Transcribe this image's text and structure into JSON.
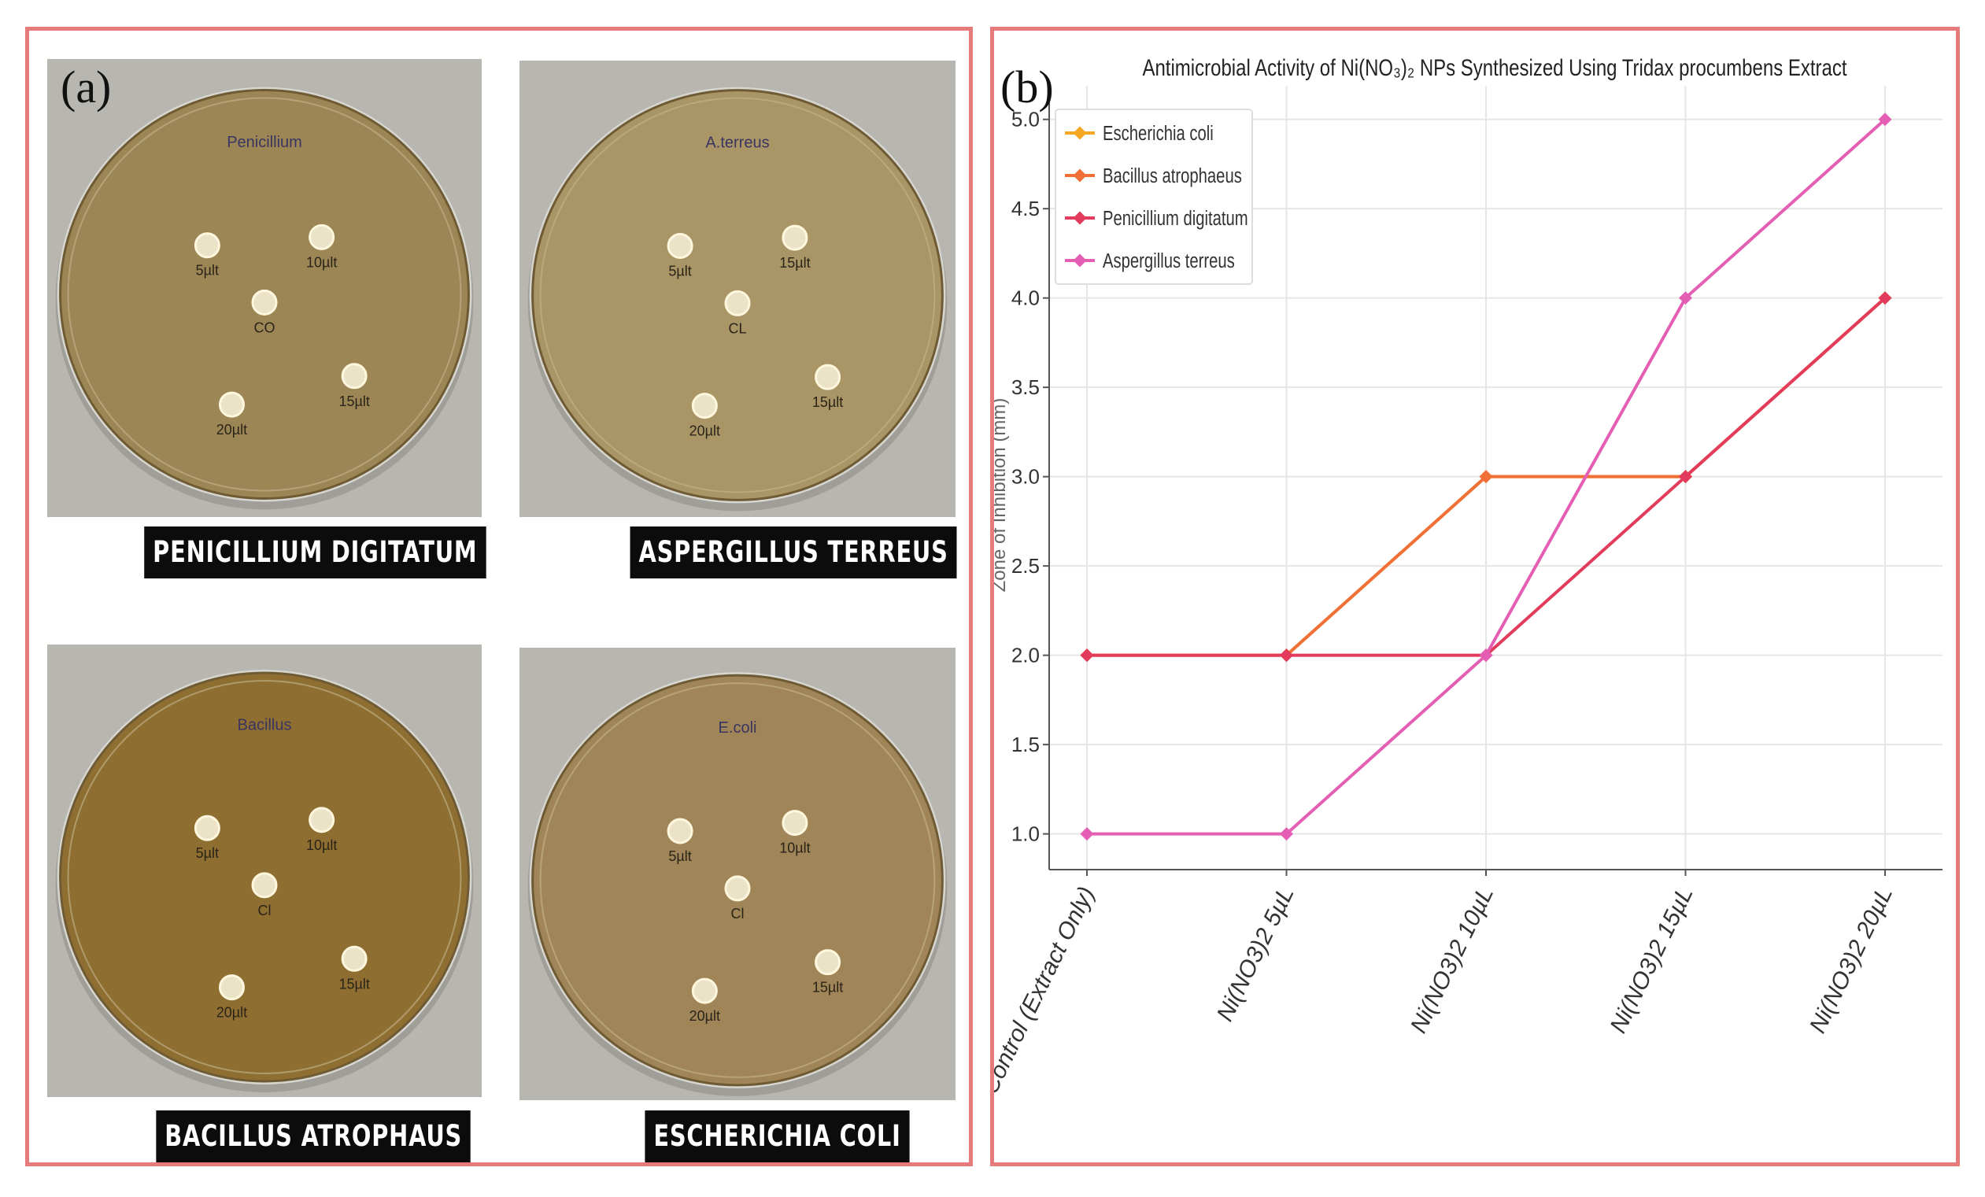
{
  "panel_a": {
    "label": "(a)",
    "plates": [
      {
        "caption": "PENICILLIUM DIGITATUM",
        "plate_labels": [
          "5µlt",
          "10µlt",
          "CO",
          "15µlt",
          "20µlt"
        ],
        "plate_top_text": "Penicillium"
      },
      {
        "caption": "ASPERGILLUS TERREUS",
        "plate_labels": [
          "5µlt",
          "15µlt",
          "CL",
          "15µlt",
          "20µlt"
        ],
        "plate_top_text": "A.terreus"
      },
      {
        "caption": "BACILLUS ATROPHAUS",
        "plate_labels": [
          "5µlt",
          "10µlt",
          "Cl",
          "15µlt",
          "20µlt"
        ],
        "plate_top_text": "Bacillus"
      },
      {
        "caption": "ESCHERICHIA COLI",
        "plate_labels": [
          "5µlt",
          "10µlt",
          "Cl",
          "15µlt",
          "20µlt"
        ],
        "plate_top_text": "E.coli"
      }
    ]
  },
  "panel_b": {
    "label": "(b)"
  },
  "chart_data": {
    "type": "line",
    "title": "Antimicrobial Activity of Ni(NO₃)₂ NPs Synthesized Using Tridax procumbens Extract",
    "xlabel": "",
    "ylabel": "Zone of Inhibition (mm)",
    "categories": [
      "Control (Extract Only)",
      "Ni(NO3)2 5µL",
      "Ni(NO3)2 10µL",
      "Ni(NO3)2 15µL",
      "Ni(NO3)2 20µL"
    ],
    "ylim": [
      0.8,
      5.1
    ],
    "yticks": [
      1.0,
      1.5,
      2.0,
      2.5,
      3.0,
      3.5,
      4.0,
      4.5,
      5.0
    ],
    "grid": true,
    "legend_position": "top-left",
    "series": [
      {
        "name": "Escherichia coli",
        "color": "#f5a623",
        "values": [
          2.0,
          2.0,
          3.0,
          3.0,
          4.0
        ]
      },
      {
        "name": "Bacillus atrophaeus",
        "color": "#f07038",
        "values": [
          2.0,
          2.0,
          3.0,
          3.0,
          4.0
        ]
      },
      {
        "name": "Penicillium digitatum",
        "color": "#e23b5c",
        "values": [
          2.0,
          2.0,
          2.0,
          3.0,
          4.0
        ]
      },
      {
        "name": "Aspergillus terreus",
        "color": "#e45fb4",
        "values": [
          1.0,
          1.0,
          2.0,
          4.0,
          5.0
        ]
      }
    ]
  }
}
